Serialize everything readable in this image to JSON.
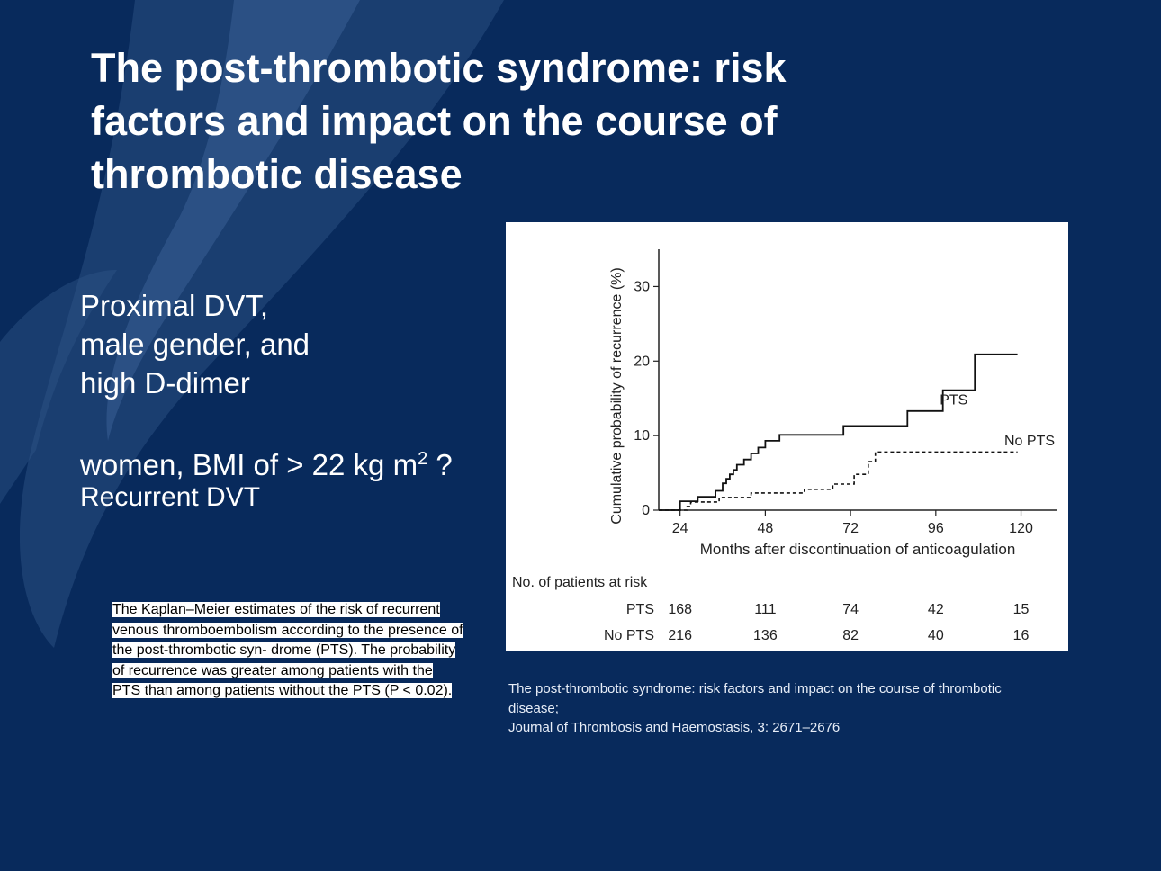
{
  "slide": {
    "title": "The post-thrombotic syndrome: risk factors and impact on the course of thrombotic disease",
    "bullets": [
      "Proximal DVT,",
      "male gender, and",
      "high D-dimer"
    ],
    "women_text": "women, BMI of > 22 kg m",
    "women_sup": "2",
    "women_suffix": " ?",
    "recurrent": "Recurrent DVT",
    "caption": "The Kaplan–Meier estimates of the risk of recurrent venous thromboembolism according to the presence of the post-thrombotic syn- drome (PTS). The probability of recurrence was greater among patients with the PTS than among patients without the PTS (P < 0.02).",
    "source_line1": "The post-thrombotic syndrome: risk factors and impact on the course of thrombotic",
    "source_line2": "disease;",
    "source_line3": "Journal of Thrombosis and Haemostasis, 3: 2671–2676",
    "colors": {
      "background": "#082a5c",
      "text": "#ffffff",
      "chart_bg": "#ffffff"
    }
  },
  "chart_data": {
    "type": "line",
    "xlabel": "Months after discontinuation of anticoagulation",
    "ylabel": "Cumulative probability of recurrence (%)",
    "xticks": [
      24,
      48,
      72,
      96,
      120
    ],
    "yticks": [
      0,
      10,
      20,
      30
    ],
    "xlim": [
      18,
      130
    ],
    "ylim": [
      0,
      35
    ],
    "grid": false,
    "series": [
      {
        "name": "PTS",
        "style": "solid",
        "step_points": [
          [
            18,
            0
          ],
          [
            24,
            0
          ],
          [
            24,
            1.2
          ],
          [
            29,
            1.2
          ],
          [
            29,
            1.8
          ],
          [
            34,
            1.8
          ],
          [
            34,
            2.6
          ],
          [
            36,
            2.6
          ],
          [
            36,
            3.6
          ],
          [
            37,
            3.6
          ],
          [
            37,
            4.2
          ],
          [
            38,
            4.2
          ],
          [
            38,
            4.8
          ],
          [
            39,
            4.8
          ],
          [
            39,
            5.4
          ],
          [
            40,
            5.4
          ],
          [
            40,
            6.1
          ],
          [
            42,
            6.1
          ],
          [
            42,
            6.8
          ],
          [
            44,
            6.8
          ],
          [
            44,
            7.6
          ],
          [
            46,
            7.6
          ],
          [
            46,
            8.4
          ],
          [
            48,
            8.4
          ],
          [
            48,
            9.3
          ],
          [
            52,
            9.3
          ],
          [
            52,
            10.1
          ],
          [
            70,
            10.1
          ],
          [
            70,
            11.3
          ],
          [
            88,
            11.3
          ],
          [
            88,
            13.3
          ],
          [
            98,
            13.3
          ],
          [
            98,
            16.1
          ],
          [
            107,
            16.1
          ],
          [
            107,
            20.9
          ],
          [
            119,
            20.9
          ]
        ]
      },
      {
        "name": "No PTS",
        "style": "dashed",
        "step_points": [
          [
            18,
            0
          ],
          [
            26,
            0
          ],
          [
            26,
            0.5
          ],
          [
            27,
            0.5
          ],
          [
            27,
            1.1
          ],
          [
            35,
            1.1
          ],
          [
            35,
            1.7
          ],
          [
            44,
            1.7
          ],
          [
            44,
            2.3
          ],
          [
            51,
            2.3
          ],
          [
            51,
            2.3
          ],
          [
            59,
            2.3
          ],
          [
            59,
            2.8
          ],
          [
            67,
            2.8
          ],
          [
            67,
            3.5
          ],
          [
            73,
            3.5
          ],
          [
            73,
            4.8
          ],
          [
            77,
            4.8
          ],
          [
            77,
            6.5
          ],
          [
            79,
            6.5
          ],
          [
            79,
            7.8
          ],
          [
            119,
            7.8
          ]
        ]
      }
    ],
    "annotations": [
      "PTS",
      "No PTS"
    ],
    "at_risk": {
      "header": "No. of patients at risk",
      "rows": [
        {
          "label": "PTS",
          "values": [
            168,
            111,
            74,
            42,
            15
          ]
        },
        {
          "label": "No PTS",
          "values": [
            216,
            136,
            82,
            40,
            16
          ]
        }
      ]
    }
  }
}
